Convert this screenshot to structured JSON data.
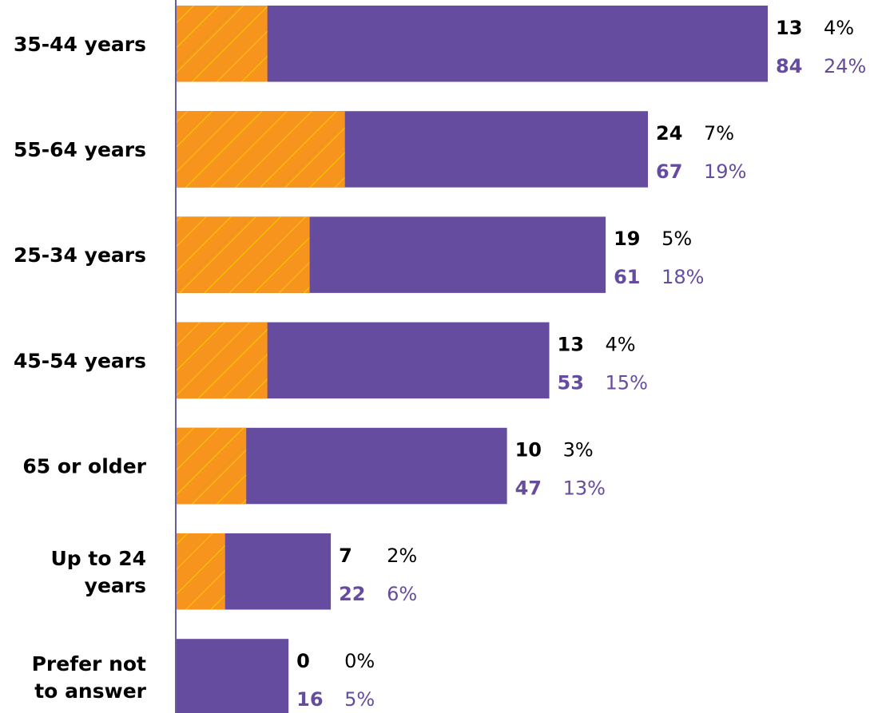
{
  "colors": {
    "primary": "#654c9e",
    "secondary": "#f7941d",
    "hatch": "#ffd500",
    "axis": "#6a5a9e",
    "text": "#000000"
  },
  "chart_data": {
    "type": "bar",
    "orientation": "horizontal",
    "stacked": "overlay",
    "title": "",
    "xlabel": "",
    "ylabel": "",
    "grid": false,
    "legend": "none",
    "xlim": [
      0,
      84
    ],
    "categories": [
      [
        "35-44 years"
      ],
      [
        "55-64 years"
      ],
      [
        "25-34 years"
      ],
      [
        "45-54 years"
      ],
      [
        "65 or older"
      ],
      [
        "Up to 24",
        "years"
      ],
      [
        "Prefer not",
        "to answer"
      ]
    ],
    "series": [
      {
        "values": [
          84,
          67,
          61,
          53,
          47,
          22,
          16
        ],
        "percent_labels": [
          "24%",
          "19%",
          "18%",
          "15%",
          "13%",
          "6%",
          "5%"
        ],
        "color": "#654c9e"
      },
      {
        "values": [
          13,
          24,
          19,
          13,
          10,
          7,
          0
        ],
        "percent_labels": [
          "4%",
          "7%",
          "5%",
          "4%",
          "3%",
          "2%",
          "0%"
        ],
        "color": "#f7941d",
        "pattern": "hatched"
      }
    ]
  }
}
